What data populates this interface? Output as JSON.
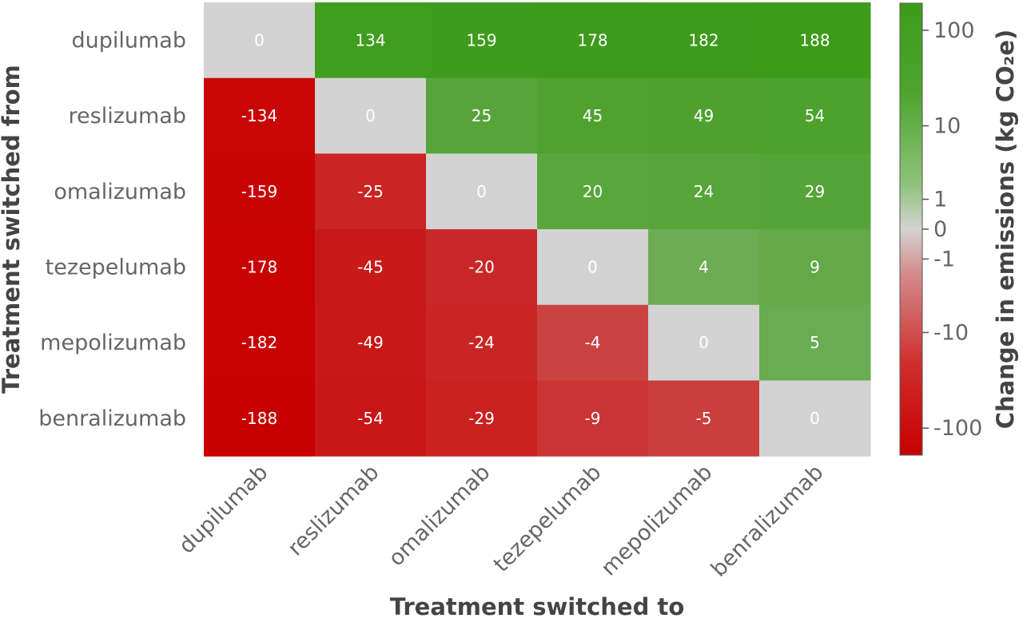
{
  "chart_data": {
    "type": "heatmap",
    "xlabel": "Treatment switched to",
    "ylabel": "Treatment switched from",
    "x_categories": [
      "dupilumab",
      "reslizumab",
      "omalizumab",
      "tezepelumab",
      "mepolizumab",
      "benralizumab"
    ],
    "y_categories": [
      "dupilumab",
      "reslizumab",
      "omalizumab",
      "tezepelumab",
      "mepolizumab",
      "benralizumab"
    ],
    "values": [
      [
        0,
        134,
        159,
        178,
        182,
        188
      ],
      [
        -134,
        0,
        25,
        45,
        49,
        54
      ],
      [
        -159,
        -25,
        0,
        20,
        24,
        29
      ],
      [
        -178,
        -45,
        -20,
        0,
        4,
        9
      ],
      [
        -182,
        -49,
        -24,
        -4,
        0,
        5
      ],
      [
        -188,
        -54,
        -29,
        -9,
        -5,
        0
      ]
    ],
    "colorbar": {
      "label": "Change in emissions (kg CO₂e)",
      "scale": "symlog",
      "range": [
        -188,
        188
      ],
      "ticks": [
        -100,
        -10,
        -1,
        0,
        1,
        10,
        100
      ],
      "tick_labels": [
        "-100",
        "-10",
        "-1",
        "0",
        "1",
        "10",
        "100"
      ],
      "colors": {
        "negative": "#c80000",
        "zero": "#d3d3d3",
        "positive": "#3d9b1a"
      }
    }
  }
}
